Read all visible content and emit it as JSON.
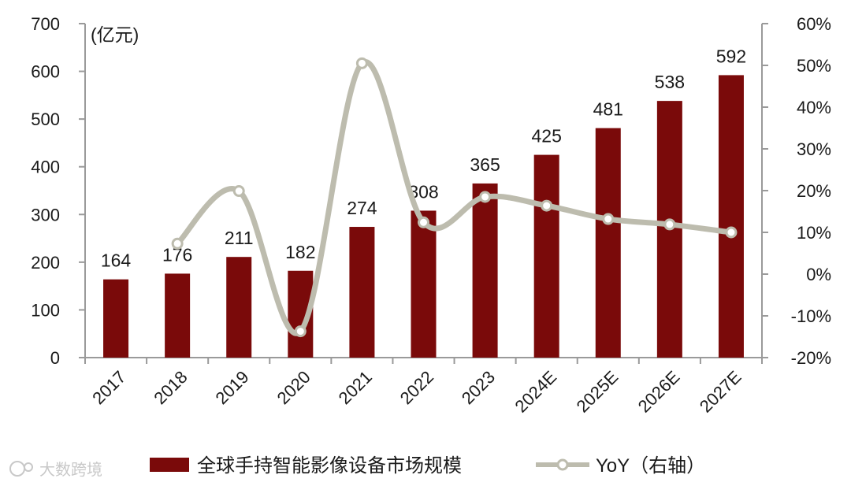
{
  "chart_data": {
    "type": "bar",
    "categories": [
      "2017",
      "2018",
      "2019",
      "2020",
      "2021",
      "2022",
      "2023",
      "2024E",
      "2025E",
      "2026E",
      "2027E"
    ],
    "series": [
      {
        "name": "全球手持智能影像设备市场规模",
        "type": "bar",
        "axis": "left",
        "values": [
          164,
          176,
          211,
          182,
          274,
          308,
          365,
          425,
          481,
          538,
          592
        ],
        "labels": [
          "164",
          "176",
          "211",
          "182",
          "274",
          "308",
          "365",
          "425",
          "481",
          "538",
          "592"
        ],
        "color": "#7a0a0a"
      },
      {
        "name": "YoY（右轴）",
        "type": "line",
        "axis": "right",
        "values": [
          null,
          7.3,
          19.9,
          -13.7,
          50.5,
          12.4,
          18.5,
          16.4,
          13.2,
          11.9,
          10.0
        ],
        "color": "#bdbcae"
      }
    ],
    "left_axis": {
      "unit_label": "(亿元)",
      "ylim": [
        0,
        700
      ],
      "ticks": [
        "0",
        "100",
        "200",
        "300",
        "400",
        "500",
        "600",
        "700"
      ]
    },
    "right_axis": {
      "ylim": [
        -20,
        60
      ],
      "ticks": [
        "-20%",
        "-10%",
        "0%",
        "10%",
        "20%",
        "30%",
        "40%",
        "50%",
        "60%"
      ]
    },
    "legend_position": "bottom",
    "grid": false
  },
  "watermark": "大数跨境"
}
